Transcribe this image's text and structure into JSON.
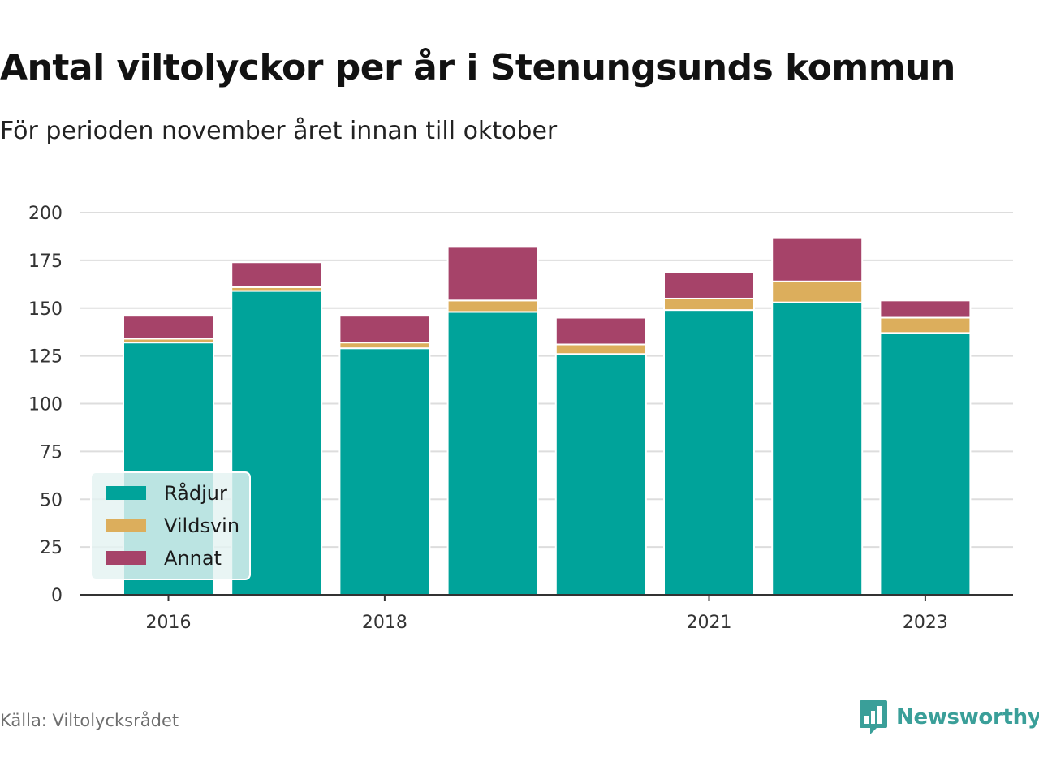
{
  "title": "Antal viltolyckor per år i Stenungsunds kommun",
  "subtitle": "För perioden november året innan till oktober",
  "source": "Källa: Viltolycksrådet",
  "brand": {
    "name": "Newsworthy",
    "icon": "newsworthy-logo-icon",
    "color": "#3a9f99"
  },
  "chart_data": {
    "type": "bar",
    "stacked": true,
    "categories": [
      "2016",
      "2017",
      "2018",
      "2019",
      "2020",
      "2021",
      "2022",
      "2023"
    ],
    "x_tick_labels": [
      "2016",
      "",
      "2018",
      "",
      "",
      "2021",
      "",
      "2023"
    ],
    "series": [
      {
        "name": "Rådjur",
        "color": "#00a39a",
        "values": [
          132,
          159,
          129,
          148,
          126,
          149,
          153,
          137
        ]
      },
      {
        "name": "Vildsvin",
        "color": "#dcae5c",
        "values": [
          2,
          2,
          3,
          6,
          5,
          6,
          11,
          8
        ]
      },
      {
        "name": "Annat",
        "color": "#a64369",
        "values": [
          12,
          13,
          14,
          28,
          14,
          14,
          23,
          9
        ]
      }
    ],
    "ylim": [
      0,
      200
    ],
    "yticks": [
      0,
      25,
      50,
      75,
      100,
      125,
      150,
      175,
      200
    ],
    "xlabel": "",
    "ylabel": "",
    "grid": true,
    "legend_position": "bottom-left"
  }
}
